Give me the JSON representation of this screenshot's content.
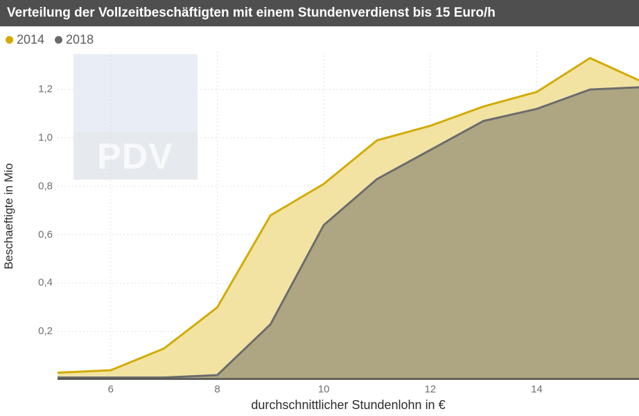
{
  "header": {
    "title": "Verteilung der Vollzeitbeschäftigten mit einem Stundenverdienst bis 15 Euro/h",
    "bg_color": "#4f4f4f",
    "text_color": "#ffffff"
  },
  "legend": {
    "items": [
      {
        "label": "2014",
        "color": "#d2ab00"
      },
      {
        "label": "2018",
        "color": "#6a6a6a"
      }
    ]
  },
  "watermark": {
    "text": "PDV",
    "box_top_color": "#e9edf5",
    "box_bottom_color": "#e6e9ee",
    "text_color": "#f8f9fb"
  },
  "chart_data": {
    "type": "area",
    "x": [
      5,
      6,
      7,
      8,
      9,
      10,
      11,
      12,
      13,
      14,
      15,
      16
    ],
    "series": [
      {
        "name": "2014",
        "line_color": "#d2ab00",
        "fill_color": "#f2e3a3",
        "values": [
          0.03,
          0.04,
          0.13,
          0.3,
          0.68,
          0.81,
          0.99,
          1.05,
          1.13,
          1.19,
          1.33,
          1.23
        ]
      },
      {
        "name": "2018",
        "line_color": "#6c6c6c",
        "fill_color": "rgba(92,92,92,0.45)",
        "values": [
          0.01,
          0.01,
          0.01,
          0.02,
          0.23,
          0.64,
          0.83,
          0.95,
          1.07,
          1.12,
          1.2,
          1.21
        ]
      }
    ],
    "xlabel": "durchschnittlicher Stundenlohn in €",
    "ylabel": "Beschaeftigte in Mio",
    "xlim": [
      5,
      15.92
    ],
    "ylim": [
      0,
      1.355
    ],
    "x_ticks": [
      6,
      8,
      10,
      12,
      14
    ],
    "x_tick_labels": [
      "6",
      "8",
      "10",
      "12",
      "14"
    ],
    "y_ticks": [
      0.2,
      0.4,
      0.6,
      0.8,
      1.0,
      1.2
    ],
    "y_tick_labels": [
      "0,2",
      "0,4",
      "0,6",
      "0,8",
      "1,0",
      "1,2"
    ],
    "grid": "dotted",
    "grid_color": "#d6d6d6",
    "axis_line_color": "#565656",
    "legend_position": "top-left"
  }
}
